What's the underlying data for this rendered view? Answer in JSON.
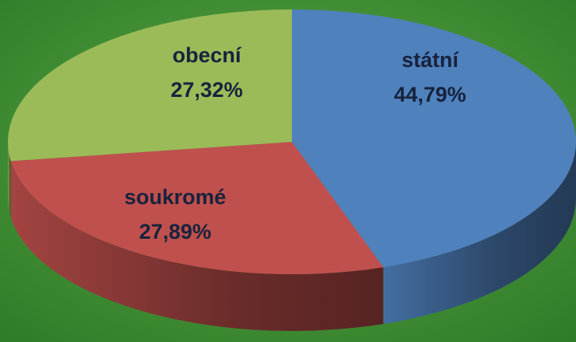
{
  "chart_data": {
    "type": "pie",
    "categories": [
      "státní",
      "soukromé",
      "obecní"
    ],
    "values": [
      44.79,
      27.89,
      27.32
    ],
    "value_labels": [
      "44,79%",
      "27,89%",
      "27,32%"
    ],
    "colors": [
      "#4f81bd",
      "#c0504d",
      "#9bbb59"
    ]
  }
}
